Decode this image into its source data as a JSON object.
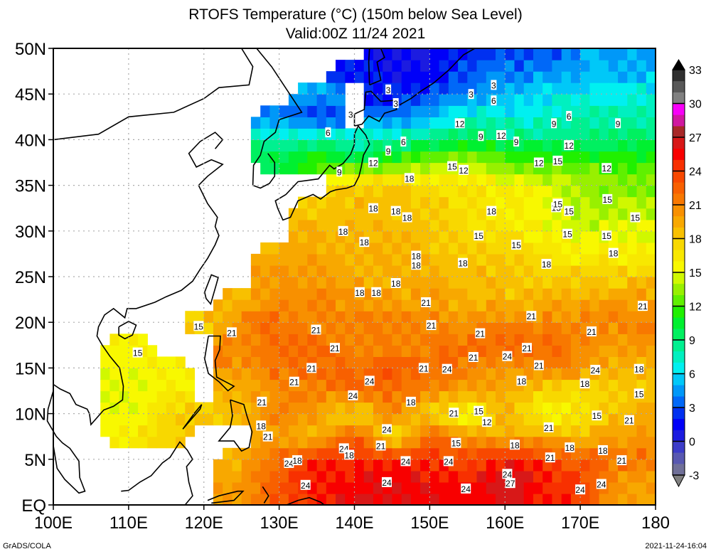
{
  "chart_data": {
    "type": "heatmap",
    "title": "RTOFS Temperature (°C) (150m below Sea Level)",
    "subtitle": "Valid:00Z 11/24 2021",
    "xlabel": "",
    "ylabel": "",
    "xlim": [
      100,
      180
    ],
    "ylim": [
      0,
      50
    ],
    "grid": true,
    "x_ticks": [
      "100E",
      "110E",
      "120E",
      "130E",
      "140E",
      "150E",
      "160E",
      "170E",
      "180"
    ],
    "x_tick_values": [
      100,
      110,
      120,
      130,
      140,
      150,
      160,
      170,
      180
    ],
    "y_ticks": [
      "EQ",
      "5N",
      "10N",
      "15N",
      "20N",
      "25N",
      "30N",
      "35N",
      "40N",
      "45N",
      "50N"
    ],
    "y_tick_values": [
      0,
      5,
      10,
      15,
      20,
      25,
      30,
      35,
      40,
      45,
      50
    ],
    "units": "°C",
    "colorbar": {
      "placement": "right",
      "labels": [
        "-3",
        "0",
        "3",
        "6",
        "9",
        "12",
        "15",
        "18",
        "21",
        "24",
        "27",
        "30",
        "33"
      ],
      "label_values": [
        -3,
        0,
        3,
        6,
        9,
        12,
        15,
        18,
        21,
        24,
        27,
        30,
        33
      ],
      "levels_min": -3,
      "levels_max": 33,
      "step": 1,
      "under_color": "#808080",
      "over_color": "#000000",
      "colors": [
        "#707098",
        "#5858b0",
        "#3c3cc8",
        "#1c1ce0",
        "#0000f8",
        "#0030f0",
        "#0068f8",
        "#0098f8",
        "#00c8f8",
        "#00f0f0",
        "#00f0c0",
        "#00f090",
        "#00f060",
        "#00f030",
        "#20f000",
        "#60f000",
        "#98f000",
        "#d0f800",
        "#f8f800",
        "#f8e800",
        "#f8d800",
        "#f8c000",
        "#f8a800",
        "#f89000",
        "#f87800",
        "#f86000",
        "#f84800",
        "#f83000",
        "#f80000",
        "#d81818",
        "#a82828",
        "#d018a0",
        "#f800f8",
        "#808080",
        "#585858",
        "#303030"
      ]
    },
    "field_lon_step": 5,
    "field_lat_step": 2.5,
    "field_lons": [
      100,
      105,
      110,
      115,
      120,
      125,
      130,
      135,
      140,
      145,
      150,
      155,
      160,
      165,
      170,
      175
    ],
    "field_lats_desc": [
      50,
      47.5,
      45,
      42.5,
      40,
      37.5,
      35,
      32.5,
      30,
      27.5,
      25,
      22.5,
      20,
      17.5,
      15,
      12.5,
      10,
      7.5,
      5,
      2.5
    ],
    "field_rows": [
      [
        null,
        null,
        null,
        null,
        null,
        null,
        null,
        null,
        null,
        1,
        1,
        2,
        3,
        3,
        4,
        5
      ],
      [
        null,
        null,
        null,
        null,
        null,
        null,
        null,
        null,
        2,
        1,
        1,
        3,
        4,
        4,
        5,
        5
      ],
      [
        null,
        null,
        null,
        null,
        null,
        null,
        null,
        5,
        null,
        2,
        3,
        4,
        5,
        6,
        6,
        7
      ],
      [
        null,
        null,
        null,
        null,
        null,
        null,
        4,
        2,
        null,
        4,
        5,
        7,
        7,
        7,
        8,
        8
      ],
      [
        null,
        null,
        null,
        null,
        null,
        null,
        8,
        9,
        7,
        8,
        9,
        10,
        9,
        9,
        9,
        9
      ],
      [
        null,
        null,
        null,
        null,
        null,
        null,
        10,
        12,
        11,
        12,
        13,
        14,
        13,
        12,
        12,
        12
      ],
      [
        null,
        null,
        null,
        null,
        null,
        null,
        null,
        null,
        18,
        19,
        17,
        17,
        16,
        15,
        14,
        13
      ],
      [
        null,
        null,
        null,
        null,
        null,
        null,
        null,
        18,
        19,
        18,
        18,
        17,
        16,
        15,
        14,
        14
      ],
      [
        null,
        null,
        null,
        null,
        null,
        null,
        null,
        19,
        19,
        19,
        18,
        17,
        17,
        16,
        15,
        15
      ],
      [
        null,
        null,
        null,
        null,
        null,
        null,
        19,
        20,
        19,
        19,
        19,
        18,
        18,
        17,
        16,
        16
      ],
      [
        null,
        null,
        null,
        null,
        null,
        null,
        20,
        20,
        19,
        19,
        19,
        19,
        18,
        18,
        18,
        18
      ],
      [
        null,
        null,
        null,
        null,
        null,
        19,
        21,
        21,
        20,
        20,
        20,
        19,
        19,
        19,
        19,
        20
      ],
      [
        null,
        null,
        null,
        null,
        18,
        21,
        22,
        21,
        21,
        21,
        21,
        20,
        21,
        21,
        21,
        21
      ],
      [
        null,
        null,
        16,
        null,
        null,
        21,
        22,
        22,
        21,
        21,
        21,
        22,
        22,
        22,
        21,
        20
      ],
      [
        null,
        null,
        15,
        16,
        null,
        20,
        22,
        22,
        22,
        23,
        22,
        21,
        20,
        21,
        20,
        19
      ],
      [
        null,
        null,
        15,
        16,
        null,
        19,
        21,
        21,
        22,
        22,
        21,
        20,
        19,
        18,
        17,
        18
      ],
      [
        null,
        null,
        15,
        17,
        18,
        19,
        21,
        20,
        17,
        21,
        17,
        15,
        19,
        15,
        17,
        19
      ],
      [
        null,
        null,
        16,
        18,
        null,
        null,
        20,
        18,
        23,
        16,
        23,
        20,
        19,
        20,
        18,
        20
      ],
      [
        null,
        null,
        null,
        null,
        null,
        19,
        22,
        25,
        25,
        25,
        24,
        24,
        25,
        24,
        23,
        22
      ],
      [
        null,
        null,
        null,
        null,
        null,
        20,
        23,
        25,
        26,
        26,
        26,
        25,
        27,
        25,
        24,
        20
      ]
    ],
    "contour_labels": [
      {
        "text": "3",
        "lon": 144.5,
        "lat": 45.5
      },
      {
        "text": "3",
        "lon": 145.5,
        "lat": 44
      },
      {
        "text": "3",
        "lon": 139.5,
        "lat": 42.8
      },
      {
        "text": "3",
        "lon": 155.5,
        "lat": 45
      },
      {
        "text": "3",
        "lon": 158.5,
        "lat": 46
      },
      {
        "text": "6",
        "lon": 136.5,
        "lat": 40.8
      },
      {
        "text": "6",
        "lon": 146.5,
        "lat": 39.8
      },
      {
        "text": "6",
        "lon": 158.5,
        "lat": 44.3
      },
      {
        "text": "6",
        "lon": 168.5,
        "lat": 42.6
      },
      {
        "text": "9",
        "lon": 138,
        "lat": 36.5
      },
      {
        "text": "9",
        "lon": 144.5,
        "lat": 38.8
      },
      {
        "text": "9",
        "lon": 156.8,
        "lat": 40.4
      },
      {
        "text": "9",
        "lon": 161.5,
        "lat": 39.8
      },
      {
        "text": "9",
        "lon": 166.5,
        "lat": 41.8
      },
      {
        "text": "9",
        "lon": 175,
        "lat": 41.8
      },
      {
        "text": "12",
        "lon": 142.5,
        "lat": 37.5
      },
      {
        "text": "12",
        "lon": 154,
        "lat": 41.8
      },
      {
        "text": "12",
        "lon": 159.5,
        "lat": 40.5
      },
      {
        "text": "12",
        "lon": 154.5,
        "lat": 36.7
      },
      {
        "text": "12",
        "lon": 164.5,
        "lat": 37.5
      },
      {
        "text": "12",
        "lon": 168.5,
        "lat": 39.4
      },
      {
        "text": "12",
        "lon": 173.5,
        "lat": 36.9
      },
      {
        "text": "15",
        "lon": 153,
        "lat": 37.1
      },
      {
        "text": "15",
        "lon": 167,
        "lat": 37.7
      },
      {
        "text": "18",
        "lon": 147.3,
        "lat": 35.8
      },
      {
        "text": "18",
        "lon": 145.5,
        "lat": 32.2
      },
      {
        "text": "18",
        "lon": 147,
        "lat": 31.5
      },
      {
        "text": "18",
        "lon": 142.5,
        "lat": 32.5
      },
      {
        "text": "18",
        "lon": 138.5,
        "lat": 30
      },
      {
        "text": "18",
        "lon": 141.3,
        "lat": 28.8
      },
      {
        "text": "18",
        "lon": 148.2,
        "lat": 27.3
      },
      {
        "text": "18",
        "lon": 148.2,
        "lat": 26.3
      },
      {
        "text": "18",
        "lon": 145.5,
        "lat": 24.3
      },
      {
        "text": "18",
        "lon": 140.7,
        "lat": 23.3
      },
      {
        "text": "18",
        "lon": 142.9,
        "lat": 23.3
      },
      {
        "text": "18",
        "lon": 158.2,
        "lat": 32.2
      },
      {
        "text": "18",
        "lon": 154.4,
        "lat": 26.5
      },
      {
        "text": "18",
        "lon": 165.5,
        "lat": 26.4
      },
      {
        "text": "18",
        "lon": 174.4,
        "lat": 27.6
      },
      {
        "text": "15",
        "lon": 166.8,
        "lat": 32.6
      },
      {
        "text": "15",
        "lon": 168.5,
        "lat": 32.2
      },
      {
        "text": "15",
        "lon": 167,
        "lat": 33
      },
      {
        "text": "15",
        "lon": 173.6,
        "lat": 33.5
      },
      {
        "text": "15",
        "lon": 177.3,
        "lat": 31.5
      },
      {
        "text": "15",
        "lon": 156.5,
        "lat": 29.5
      },
      {
        "text": "15",
        "lon": 161.5,
        "lat": 28.5
      },
      {
        "text": "15",
        "lon": 168.3,
        "lat": 29.7
      },
      {
        "text": "15",
        "lon": 173.5,
        "lat": 29.5
      },
      {
        "text": "15",
        "lon": 119.3,
        "lat": 19.6
      },
      {
        "text": "15",
        "lon": 111.2,
        "lat": 16.7
      },
      {
        "text": "21",
        "lon": 123.7,
        "lat": 18.9
      },
      {
        "text": "21",
        "lon": 134.9,
        "lat": 19.2
      },
      {
        "text": "21",
        "lon": 149.5,
        "lat": 22.2
      },
      {
        "text": "21",
        "lon": 150.2,
        "lat": 19.7
      },
      {
        "text": "21",
        "lon": 137.4,
        "lat": 17.2
      },
      {
        "text": "21",
        "lon": 134.3,
        "lat": 15
      },
      {
        "text": "21",
        "lon": 132,
        "lat": 13.5
      },
      {
        "text": "21",
        "lon": 127.7,
        "lat": 11.3
      },
      {
        "text": "21",
        "lon": 156.7,
        "lat": 18.8
      },
      {
        "text": "21",
        "lon": 163.5,
        "lat": 20.7
      },
      {
        "text": "21",
        "lon": 171.5,
        "lat": 19
      },
      {
        "text": "21",
        "lon": 178.3,
        "lat": 21.8
      },
      {
        "text": "21",
        "lon": 155.8,
        "lat": 16.2
      },
      {
        "text": "21",
        "lon": 162.9,
        "lat": 17.2
      },
      {
        "text": "21",
        "lon": 164.5,
        "lat": 15.3
      },
      {
        "text": "21",
        "lon": 149.2,
        "lat": 15
      },
      {
        "text": "21",
        "lon": 128.5,
        "lat": 7.5
      },
      {
        "text": "21",
        "lon": 143.5,
        "lat": 6.5
      },
      {
        "text": "21",
        "lon": 153.2,
        "lat": 10.1
      },
      {
        "text": "21",
        "lon": 165.8,
        "lat": 8.5
      },
      {
        "text": "21",
        "lon": 166,
        "lat": 5.2
      },
      {
        "text": "21",
        "lon": 175.5,
        "lat": 4.9
      },
      {
        "text": "21",
        "lon": 176.5,
        "lat": 9.3
      },
      {
        "text": "24",
        "lon": 160.3,
        "lat": 16.3
      },
      {
        "text": "24",
        "lon": 142,
        "lat": 13.6
      },
      {
        "text": "24",
        "lon": 139.8,
        "lat": 12
      },
      {
        "text": "24",
        "lon": 152.3,
        "lat": 14.9
      },
      {
        "text": "24",
        "lon": 172,
        "lat": 14.8
      },
      {
        "text": "24",
        "lon": 144.3,
        "lat": 8.3
      },
      {
        "text": "24",
        "lon": 138.6,
        "lat": 6.2
      },
      {
        "text": "24",
        "lon": 131.3,
        "lat": 4.6
      },
      {
        "text": "24",
        "lon": 146.8,
        "lat": 4.8
      },
      {
        "text": "24",
        "lon": 152.5,
        "lat": 4.8
      },
      {
        "text": "24",
        "lon": 133.5,
        "lat": 2.2
      },
      {
        "text": "24",
        "lon": 144.3,
        "lat": 2.5
      },
      {
        "text": "24",
        "lon": 154.8,
        "lat": 1.8
      },
      {
        "text": "24",
        "lon": 160.3,
        "lat": 3.4
      },
      {
        "text": "24",
        "lon": 170,
        "lat": 1.7
      },
      {
        "text": "24",
        "lon": 172.8,
        "lat": 2.3
      },
      {
        "text": "27",
        "lon": 160.7,
        "lat": 2.4
      },
      {
        "text": "18",
        "lon": 162.2,
        "lat": 13.6
      },
      {
        "text": "18",
        "lon": 170.6,
        "lat": 13.3
      },
      {
        "text": "18",
        "lon": 177.8,
        "lat": 14.9
      },
      {
        "text": "18",
        "lon": 147.5,
        "lat": 11.3
      },
      {
        "text": "18",
        "lon": 127.6,
        "lat": 8.7
      },
      {
        "text": "18",
        "lon": 132.4,
        "lat": 4.9
      },
      {
        "text": "18",
        "lon": 139.3,
        "lat": 5.5
      },
      {
        "text": "18",
        "lon": 161.3,
        "lat": 6.6
      },
      {
        "text": "18",
        "lon": 168.6,
        "lat": 6.3
      },
      {
        "text": "18",
        "lon": 173,
        "lat": 6
      },
      {
        "text": "15",
        "lon": 156.5,
        "lat": 10.3
      },
      {
        "text": "15",
        "lon": 153.5,
        "lat": 6.8
      },
      {
        "text": "15",
        "lon": 172.2,
        "lat": 9.8
      },
      {
        "text": "15",
        "lon": 177.8,
        "lat": 12.2
      },
      {
        "text": "12",
        "lon": 157.6,
        "lat": 9.1
      }
    ]
  },
  "footer": {
    "left": "GrADS/COLA",
    "right": "2021-11-24-16:04"
  }
}
